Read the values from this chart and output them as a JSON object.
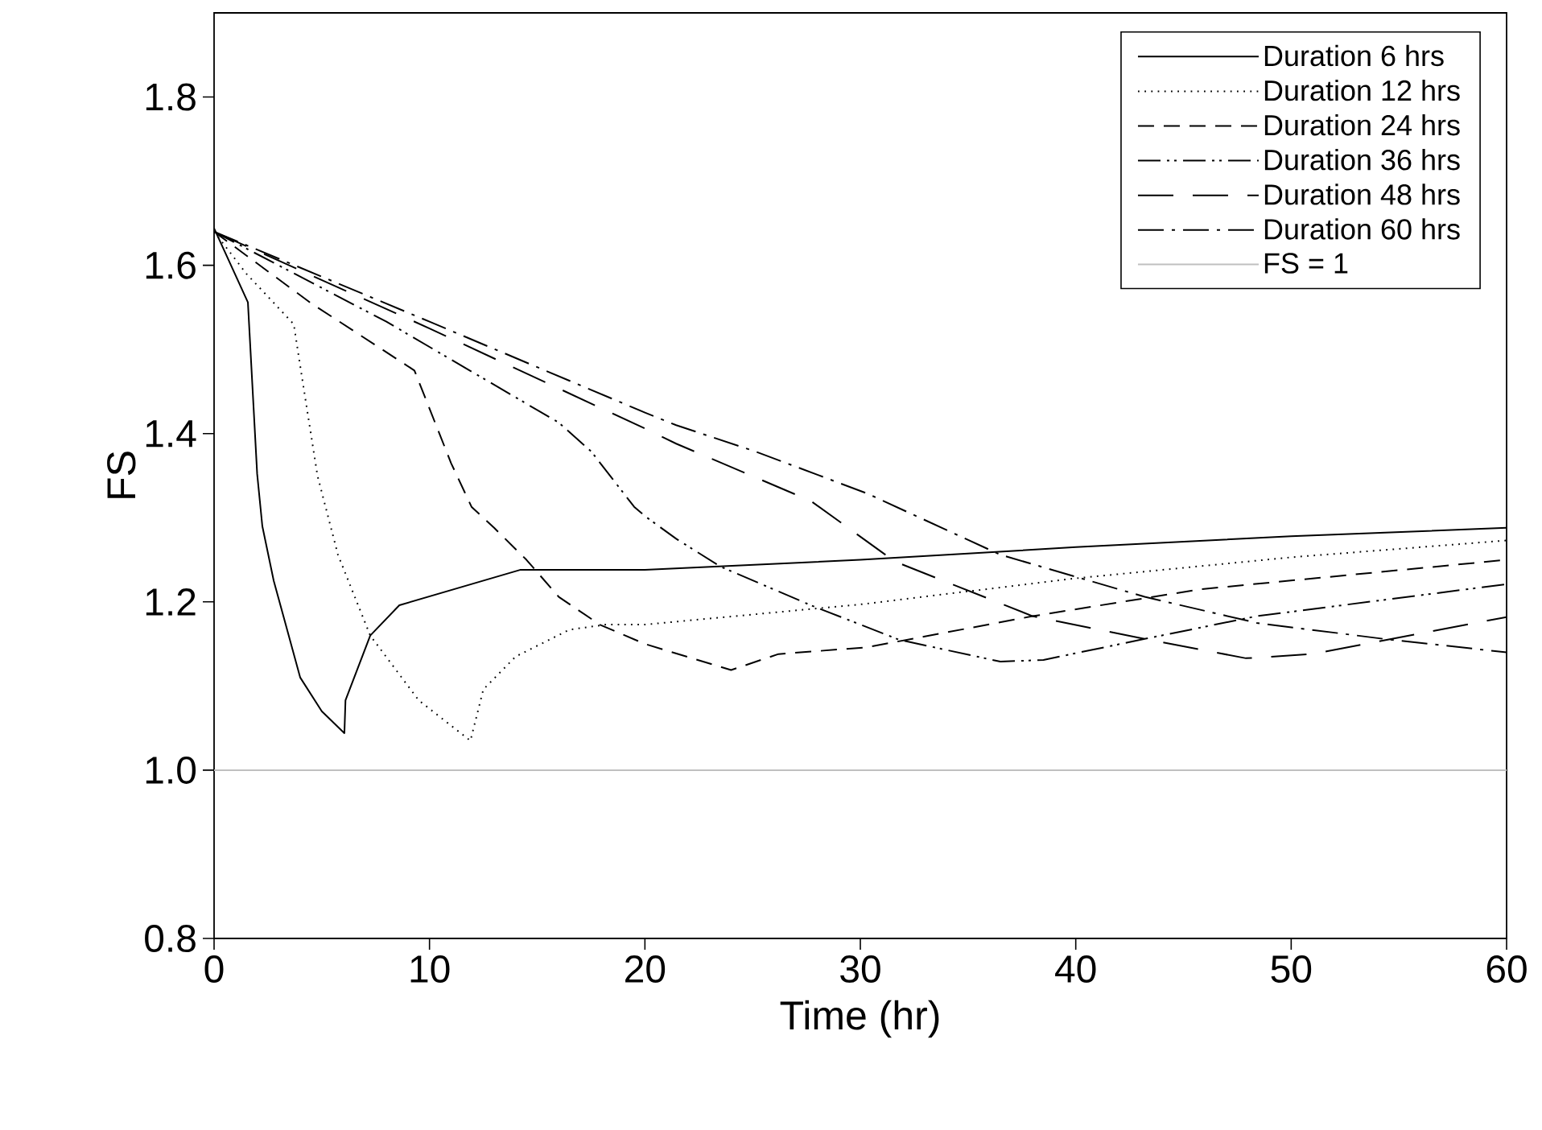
{
  "chart_data": {
    "type": "line",
    "xlabel": "Time (hr)",
    "ylabel": "FS",
    "xlim": [
      0,
      60
    ],
    "ylim": [
      0.8,
      1.9
    ],
    "xticks": [
      0,
      10,
      20,
      30,
      40,
      50,
      60
    ],
    "yticks": [
      0.8,
      {
        "value": 1,
        "label": "1.0"
      },
      1.2,
      1.4,
      1.6,
      1.8
    ],
    "legend": "top right",
    "grid": false,
    "marker": "none",
    "series": [
      {
        "name": "Duration   6 hrs",
        "color": "#000000",
        "line_style": "solid",
        "x": [
          0,
          1.57,
          2.0,
          2.24,
          2.77,
          4.0,
          5.0,
          6.05,
          6.1,
          7.25,
          8.6,
          14.2,
          20,
          30,
          40,
          50,
          60
        ],
        "values": [
          1.644,
          1.556,
          1.352,
          1.29,
          1.225,
          1.11,
          1.07,
          1.044,
          1.083,
          1.16,
          1.196,
          1.238,
          1.238,
          1.25,
          1.265,
          1.278,
          1.288
        ]
      },
      {
        "name": "Duration 12 hrs",
        "color": "#000000",
        "line_style": "dotted",
        "x": [
          0,
          1.5,
          3.7,
          4.0,
          4.8,
          5.75,
          7.25,
          9.5,
          11.9,
          12.5,
          14,
          16.5,
          18.2,
          20,
          30,
          40,
          50,
          60
        ],
        "values": [
          1.64,
          1.59,
          1.53,
          1.48,
          1.35,
          1.256,
          1.16,
          1.083,
          1.035,
          1.096,
          1.135,
          1.167,
          1.173,
          1.173,
          1.197,
          1.228,
          1.253,
          1.273
        ]
      },
      {
        "name": "Duration 24 hrs",
        "color": "#000000",
        "line_style": "dashed",
        "x": [
          0,
          4.5,
          9.3,
          11,
          11.95,
          13,
          14.5,
          16,
          17.9,
          20,
          24,
          26.2,
          30.3,
          38,
          45.8,
          60
        ],
        "values": [
          1.64,
          1.555,
          1.475,
          1.365,
          1.313,
          1.288,
          1.25,
          1.206,
          1.173,
          1.15,
          1.119,
          1.138,
          1.146,
          1.183,
          1.215,
          1.25
        ]
      },
      {
        "name": "Duration 36 hrs",
        "color": "#000000",
        "line_style": "dashdotdotted",
        "x": [
          0,
          8,
          16,
          17.5,
          19.5,
          20,
          21.45,
          23.5,
          27.7,
          31.8,
          36.5,
          38.5,
          43.2,
          48.4,
          60
        ],
        "values": [
          1.64,
          1.533,
          1.413,
          1.379,
          1.313,
          1.302,
          1.275,
          1.242,
          1.196,
          1.155,
          1.129,
          1.131,
          1.156,
          1.183,
          1.221
        ]
      },
      {
        "name": "Duration 48 hrs",
        "color": "#000000",
        "line_style": "loosely dashed",
        "x": [
          0,
          10,
          20,
          21.45,
          27.7,
          31.6,
          38,
          43.2,
          47.9,
          51,
          60
        ],
        "values": [
          1.64,
          1.525,
          1.406,
          1.388,
          1.32,
          1.248,
          1.183,
          1.156,
          1.133,
          1.138,
          1.182
        ]
      },
      {
        "name": "Duration 60 hrs",
        "color": "#000000",
        "line_style": "dashdotted",
        "x": [
          0,
          10,
          20,
          21.45,
          25.1,
          30.3,
          36.5,
          43.2,
          48.4,
          54.3,
          60
        ],
        "values": [
          1.64,
          1.533,
          1.425,
          1.41,
          1.379,
          1.329,
          1.256,
          1.206,
          1.175,
          1.156,
          1.14
        ]
      }
    ],
    "ref_lines": [
      {
        "axis": "y",
        "value": 1,
        "label": "FS = 1",
        "color": "#c0c0c0"
      }
    ]
  }
}
